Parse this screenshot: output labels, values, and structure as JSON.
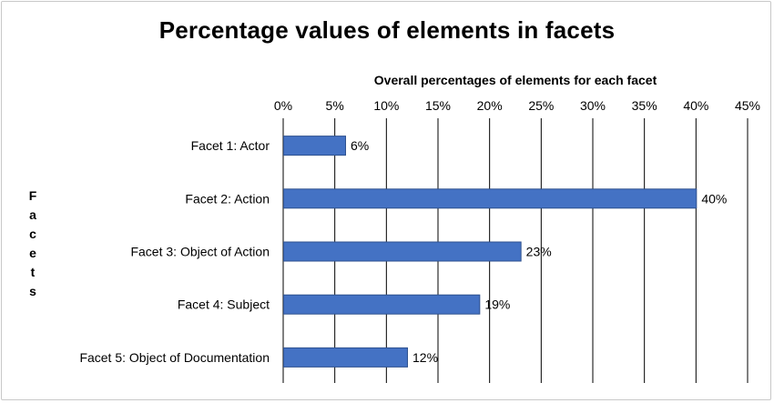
{
  "chart_data": {
    "type": "bar",
    "orientation": "horizontal",
    "title": "Percentage values of elements in facets",
    "xlabel": "Overall percentages of elements for each facet",
    "ylabel": "Facets",
    "xlim": [
      0,
      45
    ],
    "xticks": [
      "0%",
      "5%",
      "10%",
      "15%",
      "20%",
      "25%",
      "30%",
      "35%",
      "40%",
      "45%"
    ],
    "x_axis_position": "top",
    "grid": true,
    "legend": "none",
    "bar_color": "#4472C4",
    "categories": [
      "Facet 1: Actor",
      "Facet 2: Action",
      "Facet 3: Object of Action",
      "Facet 4: Subject",
      "Facet 5: Object of Documentation"
    ],
    "values": [
      6,
      40,
      23,
      19,
      12
    ],
    "data_labels": [
      "6%",
      "40%",
      "23%",
      "19%",
      "12%"
    ]
  }
}
